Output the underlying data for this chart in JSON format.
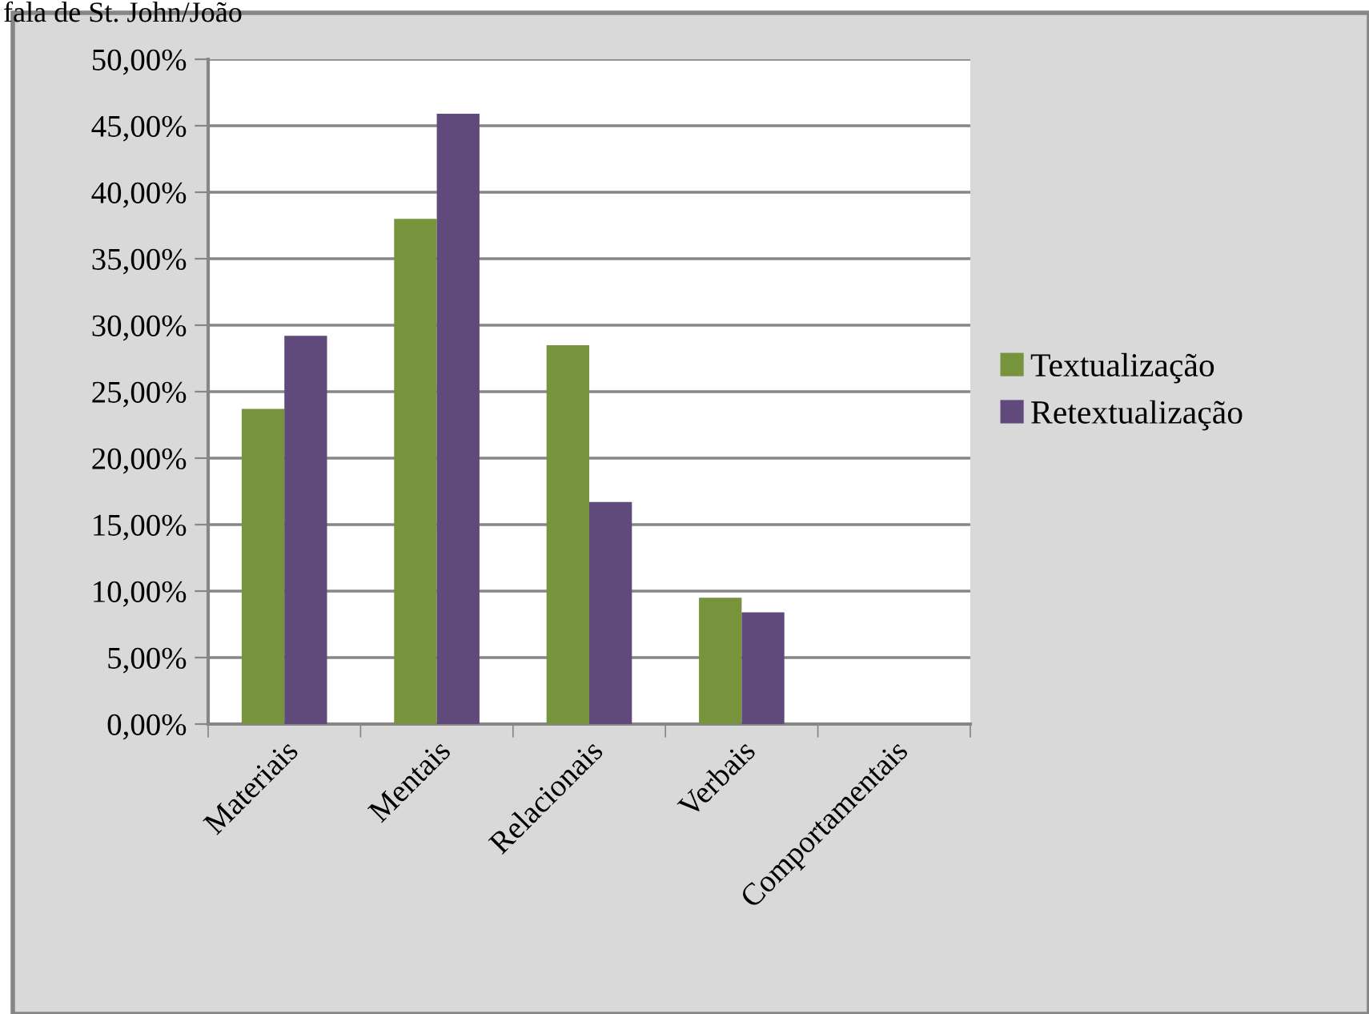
{
  "chart_data": {
    "type": "bar",
    "title": "fala de St. John/João",
    "categories": [
      "Materiais",
      "Mentais",
      "Relacionais",
      "Verbais",
      "Comportamentais"
    ],
    "series": [
      {
        "name": "Textualização",
        "color": "#77933c",
        "values": [
          23.7,
          38.0,
          28.5,
          9.5,
          0
        ]
      },
      {
        "name": "Retextualização",
        "color": "#604a7b",
        "values": [
          29.2,
          45.9,
          16.7,
          8.4,
          0
        ]
      }
    ],
    "ylim": [
      0,
      50
    ],
    "yticks": [
      {
        "value": 0,
        "label": "0,00%"
      },
      {
        "value": 5,
        "label": "5,00%"
      },
      {
        "value": 10,
        "label": "10,00%"
      },
      {
        "value": 15,
        "label": "15,00%"
      },
      {
        "value": 20,
        "label": "20,00%"
      },
      {
        "value": 25,
        "label": "25,00%"
      },
      {
        "value": 30,
        "label": "30,00%"
      },
      {
        "value": 35,
        "label": "35,00%"
      },
      {
        "value": 40,
        "label": "40,00%"
      },
      {
        "value": 45,
        "label": "45,00%"
      },
      {
        "value": 50,
        "label": "50,00%"
      }
    ],
    "grid": "y",
    "legend": "right"
  }
}
